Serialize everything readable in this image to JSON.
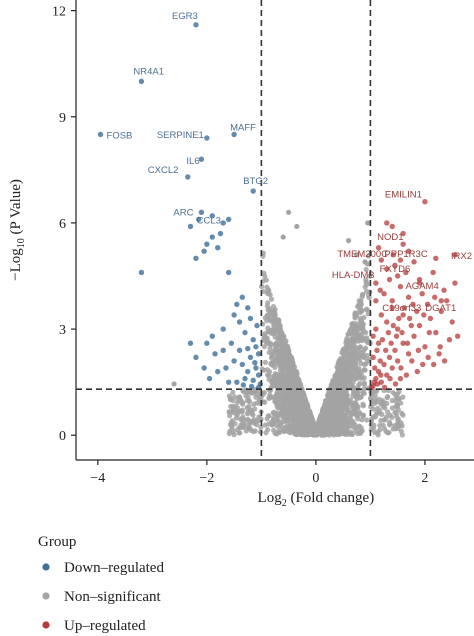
{
  "chart_data": {
    "type": "scatter",
    "xlabel": "Log",
    "xlabel_sub": "2",
    "xlabel_rest": " (Fold change)",
    "ylabel": "−Log",
    "ylabel_sub": "10",
    "ylabel_rest": " (P Value)",
    "xlim": [
      -4.4,
      2.9
    ],
    "ylim": [
      -0.7,
      12.3
    ],
    "x_ticks": [
      -4,
      -2,
      0,
      2
    ],
    "x_tick_labels": [
      "−4",
      "−2",
      "0",
      "2"
    ],
    "y_ticks": [
      0,
      3,
      6,
      9,
      12
    ],
    "y_tick_labels": [
      "0",
      "3",
      "6",
      "9",
      "12"
    ],
    "thresholds": {
      "log2fc": [
        -1,
        1
      ],
      "neg_log10_p": 1.3
    },
    "grid": false,
    "legend": {
      "title": "Group",
      "placement": "bottom-left",
      "items": [
        {
          "label": "Down–regulated",
          "color": "#3f6e99"
        },
        {
          "label": "Non–significant",
          "color": "#a3a3a3"
        },
        {
          "label": "Up–regulated",
          "color": "#b53a3a"
        }
      ]
    },
    "colors": {
      "down": "#3f6e99",
      "non": "#a3a3a3",
      "up": "#b53a3a"
    },
    "labeled_down": [
      {
        "gene": "EGR3",
        "x": -2.2,
        "y": 11.6
      },
      {
        "gene": "NR4A1",
        "x": -3.2,
        "y": 10.0
      },
      {
        "gene": "FOSB",
        "x": -3.95,
        "y": 8.5
      },
      {
        "gene": "SERPINE1",
        "x": -2.0,
        "y": 8.4
      },
      {
        "gene": "MAFF",
        "x": -1.5,
        "y": 8.5
      },
      {
        "gene": "IL6",
        "x": -2.1,
        "y": 7.8
      },
      {
        "gene": "CXCL2",
        "x": -2.35,
        "y": 7.3
      },
      {
        "gene": "BTG2",
        "x": -1.15,
        "y": 6.9
      },
      {
        "gene": "ARC",
        "x": -2.1,
        "y": 6.3
      },
      {
        "gene": "CCL3",
        "x": -1.6,
        "y": 6.1
      }
    ],
    "labeled_up": [
      {
        "gene": "EMILIN1",
        "x": 2.0,
        "y": 6.6
      },
      {
        "gene": "NOD1",
        "x": 1.6,
        "y": 5.4
      },
      {
        "gene": "TMEM200C",
        "x": 1.2,
        "y": 4.95
      },
      {
        "gene": "PPP1R3C",
        "x": 1.55,
        "y": 4.95
      },
      {
        "gene": "IRX2",
        "x": 2.55,
        "y": 5.1
      },
      {
        "gene": "FXYD6",
        "x": 1.5,
        "y": 4.5
      },
      {
        "gene": "AGAM4",
        "x": 1.9,
        "y": 4.3
      },
      {
        "gene": "HLA-DMB",
        "x": 1.1,
        "y": 4.3
      },
      {
        "gene": "DGAT1",
        "x": 2.3,
        "y": 3.8
      },
      {
        "gene": "C19orf33",
        "x": 1.4,
        "y": 3.8
      }
    ],
    "down_points": [
      [
        -3.2,
        4.6
      ],
      [
        -2.2,
        5.0
      ],
      [
        -2.0,
        5.4
      ],
      [
        -1.9,
        5.6
      ],
      [
        -1.75,
        5.7
      ],
      [
        -1.7,
        6.0
      ],
      [
        -2.05,
        5.2
      ],
      [
        -1.8,
        5.3
      ],
      [
        -2.3,
        5.9
      ],
      [
        -1.45,
        3.7
      ],
      [
        -1.6,
        4.6
      ],
      [
        -1.25,
        3.6
      ],
      [
        -1.4,
        3.2
      ],
      [
        -1.7,
        3.0
      ],
      [
        -1.9,
        2.8
      ],
      [
        -2.0,
        2.6
      ],
      [
        -1.55,
        2.6
      ],
      [
        -1.3,
        2.9
      ],
      [
        -1.15,
        2.7
      ],
      [
        -1.1,
        2.5
      ],
      [
        -1.05,
        2.3
      ],
      [
        -1.2,
        2.2
      ],
      [
        -1.35,
        2.0
      ],
      [
        -1.5,
        2.1
      ],
      [
        -1.65,
        1.9
      ],
      [
        -1.8,
        1.8
      ],
      [
        -2.05,
        1.9
      ],
      [
        -1.25,
        1.8
      ],
      [
        -1.1,
        1.9
      ],
      [
        -1.05,
        1.7
      ],
      [
        -1.15,
        1.55
      ],
      [
        -1.3,
        1.6
      ],
      [
        -1.45,
        1.5
      ],
      [
        -1.6,
        1.5
      ],
      [
        -1.02,
        1.45
      ],
      [
        -1.08,
        3.1
      ],
      [
        -1.2,
        3.3
      ],
      [
        -1.35,
        3.9
      ],
      [
        -1.5,
        3.4
      ],
      [
        -1.85,
        2.3
      ],
      [
        -2.2,
        2.2
      ],
      [
        -1.7,
        2.4
      ],
      [
        -1.4,
        2.4
      ],
      [
        -1.12,
        2.05
      ],
      [
        -1.25,
        2.45
      ],
      [
        -1.95,
        1.6
      ],
      [
        -2.3,
        2.6
      ],
      [
        -1.05,
        1.35
      ],
      [
        -1.18,
        1.38
      ],
      [
        -1.33,
        1.42
      ],
      [
        -1.9,
        6.2
      ],
      [
        -2.15,
        6.1
      ]
    ],
    "up_points": [
      [
        1.05,
        1.4
      ],
      [
        1.1,
        1.6
      ],
      [
        1.15,
        1.8
      ],
      [
        1.2,
        1.5
      ],
      [
        1.25,
        2.0
      ],
      [
        1.3,
        1.7
      ],
      [
        1.35,
        2.2
      ],
      [
        1.4,
        1.9
      ],
      [
        1.45,
        2.4
      ],
      [
        1.5,
        2.1
      ],
      [
        1.55,
        1.6
      ],
      [
        1.6,
        2.6
      ],
      [
        1.7,
        2.3
      ],
      [
        1.8,
        2.8
      ],
      [
        1.9,
        3.1
      ],
      [
        2.0,
        2.5
      ],
      [
        2.1,
        3.3
      ],
      [
        2.2,
        2.9
      ],
      [
        2.3,
        3.5
      ],
      [
        2.5,
        3.2
      ],
      [
        2.6,
        2.8
      ],
      [
        1.05,
        2.8
      ],
      [
        1.1,
        3.0
      ],
      [
        1.15,
        2.6
      ],
      [
        1.2,
        3.4
      ],
      [
        1.3,
        3.2
      ],
      [
        1.4,
        3.6
      ],
      [
        1.5,
        3.0
      ],
      [
        1.6,
        3.4
      ],
      [
        1.7,
        3.9
      ],
      [
        1.75,
        3.1
      ],
      [
        1.85,
        3.5
      ],
      [
        1.95,
        4.0
      ],
      [
        2.05,
        3.7
      ],
      [
        1.25,
        4.0
      ],
      [
        1.35,
        4.4
      ],
      [
        1.65,
        4.6
      ],
      [
        1.8,
        4.9
      ],
      [
        2.35,
        4.1
      ],
      [
        2.15,
        4.6
      ],
      [
        2.55,
        4.3
      ],
      [
        1.05,
        2.2
      ],
      [
        1.08,
        1.9
      ],
      [
        1.12,
        2.4
      ],
      [
        1.18,
        2.1
      ],
      [
        1.22,
        2.7
      ],
      [
        1.28,
        2.4
      ],
      [
        1.33,
        2.9
      ],
      [
        1.38,
        2.6
      ],
      [
        1.42,
        3.1
      ],
      [
        1.48,
        2.8
      ],
      [
        1.52,
        3.3
      ],
      [
        1.58,
        2.9
      ],
      [
        1.62,
        3.6
      ],
      [
        1.68,
        2.6
      ],
      [
        1.72,
        3.3
      ],
      [
        1.78,
        3.7
      ],
      [
        1.88,
        2.4
      ],
      [
        1.98,
        3.4
      ],
      [
        2.08,
        2.9
      ],
      [
        2.18,
        3.9
      ],
      [
        2.28,
        2.5
      ],
      [
        2.4,
        3.8
      ],
      [
        2.45,
        2.7
      ],
      [
        1.55,
        4.2
      ],
      [
        1.9,
        4.4
      ],
      [
        2.2,
        5.0
      ],
      [
        1.45,
        4.8
      ],
      [
        1.7,
        5.2
      ],
      [
        1.02,
        1.35
      ],
      [
        1.07,
        1.5
      ],
      [
        1.13,
        1.45
      ],
      [
        1.19,
        1.7
      ],
      [
        1.26,
        1.35
      ],
      [
        1.36,
        1.6
      ],
      [
        1.46,
        1.45
      ],
      [
        1.56,
        1.9
      ],
      [
        1.66,
        1.7
      ],
      [
        1.76,
        2.1
      ],
      [
        1.86,
        1.8
      ],
      [
        1.96,
        2.0
      ],
      [
        2.06,
        2.2
      ],
      [
        2.16,
        2.0
      ],
      [
        2.26,
        2.3
      ],
      [
        2.36,
        2.1
      ],
      [
        1.1,
        3.8
      ],
      [
        1.18,
        4.1
      ],
      [
        1.3,
        4.7
      ],
      [
        1.42,
        5.1
      ],
      [
        1.6,
        5.7
      ],
      [
        1.4,
        5.9
      ],
      [
        1.3,
        6.0
      ],
      [
        1.15,
        5.3
      ]
    ]
  }
}
